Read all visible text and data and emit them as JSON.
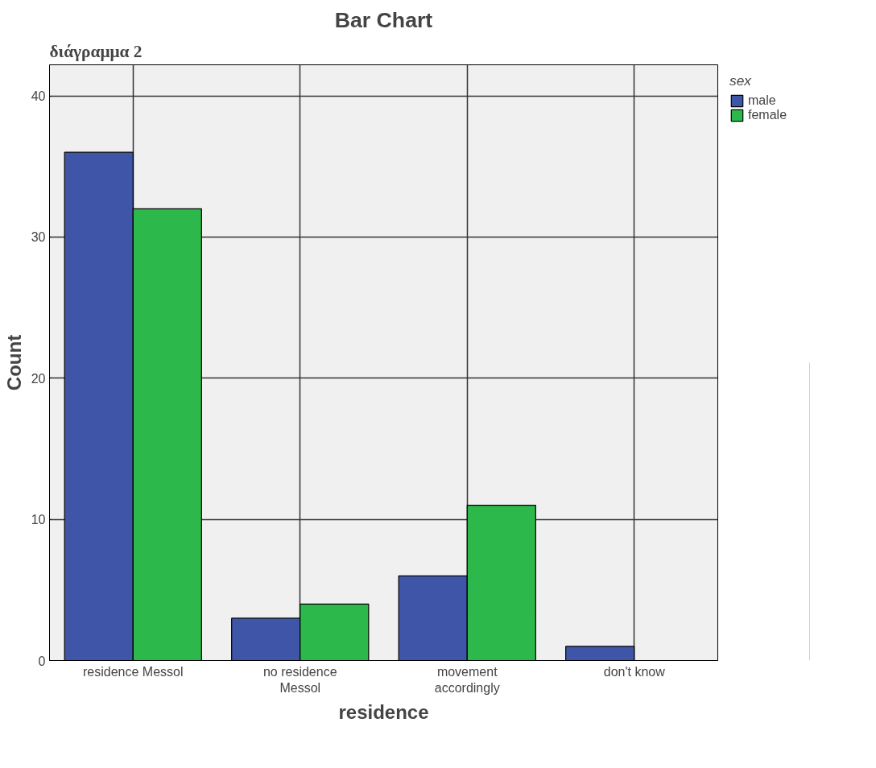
{
  "chart_data": {
    "type": "bar",
    "title": "Bar Chart",
    "xlabel": "residence",
    "ylabel": "Count",
    "legend_title": "sex",
    "annotations": [
      "διάγραμμα 2"
    ],
    "categories": [
      "residence Messol",
      "no residence\nMessol",
      "movement\naccordingly",
      "don't know"
    ],
    "series": [
      {
        "name": "male",
        "color": "#3f56a8",
        "values": [
          36,
          3,
          6,
          1
        ]
      },
      {
        "name": "female",
        "color": "#2cb84a",
        "values": [
          32,
          4,
          11,
          null
        ]
      }
    ],
    "ylim": [
      0,
      42.2
    ],
    "yticks": [
      0,
      10,
      20,
      30,
      40
    ],
    "grid": true,
    "legend": "top right"
  }
}
